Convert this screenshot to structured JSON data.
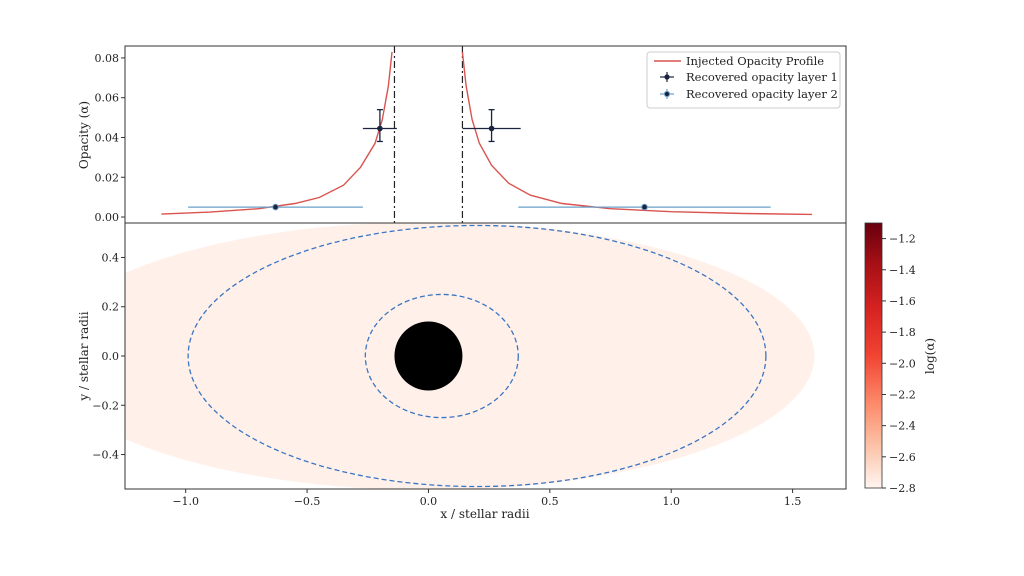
{
  "chart_data": [
    {
      "type": "line",
      "ylabel": "Opacity (α)",
      "xlim": [
        -1.25,
        1.72
      ],
      "ylim": [
        -0.003,
        0.086
      ],
      "yticks": [
        "0.00",
        "0.02",
        "0.04",
        "0.06",
        "0.08"
      ],
      "ytick_values": [
        0,
        0.02,
        0.04,
        0.06,
        0.08
      ],
      "vlines": [
        -0.14,
        0.14
      ],
      "legend": {
        "placement": "top-right",
        "entries": [
          "Injected Opacity Profile",
          "Recovered opacity layer 1",
          "Recovered opacity layer 2"
        ]
      },
      "series": [
        {
          "name": "Injected Opacity Profile",
          "color": "#d9534f",
          "left_x": [
            -1.1,
            -0.9,
            -0.7,
            -0.55,
            -0.45,
            -0.35,
            -0.28,
            -0.22,
            -0.19,
            -0.165,
            -0.15
          ],
          "left_y": [
            0.0015,
            0.0025,
            0.0042,
            0.0068,
            0.0098,
            0.016,
            0.025,
            0.037,
            0.049,
            0.066,
            0.083
          ],
          "right_x": [
            0.14,
            0.155,
            0.18,
            0.21,
            0.26,
            0.33,
            0.42,
            0.55,
            0.75,
            1.0,
            1.3,
            1.58
          ],
          "right_y": [
            0.083,
            0.066,
            0.049,
            0.037,
            0.026,
            0.017,
            0.011,
            0.0068,
            0.0042,
            0.0027,
            0.0018,
            0.0013
          ]
        },
        {
          "name": "Recovered opacity layer 1",
          "color": "#1a2440",
          "points": [
            {
              "x": -0.2,
              "y": 0.0445,
              "xerr": [
                0.07,
                0.07
              ],
              "yerr": [
                0.0065,
                0.0095
              ]
            },
            {
              "x": 0.26,
              "y": 0.0445,
              "xerr": [
                0.12,
                0.12
              ],
              "yerr": [
                0.0065,
                0.0095
              ]
            }
          ]
        },
        {
          "name": "Recovered opacity layer 2",
          "color": "#6aa0c8",
          "points": [
            {
              "x": -0.63,
              "y": 0.005,
              "xerr": [
                0.36,
                0.36
              ],
              "yerr": [
                0,
                0
              ]
            },
            {
              "x": 0.89,
              "y": 0.005,
              "xerr": [
                0.52,
                0.52
              ],
              "yerr": [
                0,
                0
              ]
            }
          ]
        }
      ]
    },
    {
      "type": "heatmap",
      "xlabel": "x / stellar radii",
      "ylabel": "y / stellar radii",
      "xlim": [
        -1.25,
        1.72
      ],
      "ylim": [
        -0.54,
        0.54
      ],
      "xticks": [
        "−1.0",
        "−0.5",
        "0.0",
        "0.5",
        "1.0",
        "1.5"
      ],
      "xtick_values": [
        -1.0,
        -0.5,
        0.0,
        0.5,
        1.0,
        1.5
      ],
      "yticks": [
        "−0.4",
        "−0.2",
        "0.0",
        "0.2",
        "0.4"
      ],
      "ytick_values": [
        -0.4,
        -0.2,
        0.0,
        0.2,
        0.4
      ],
      "colormap": "Reds",
      "colorbar": {
        "label": "log(α)",
        "range": [
          -2.8,
          -1.1
        ],
        "ticks": [
          "−1.2",
          "−1.4",
          "−1.6",
          "−1.8",
          "−2.0",
          "−2.2",
          "−2.4",
          "−2.6",
          "−2.8"
        ],
        "tick_values": [
          -1.2,
          -1.4,
          -1.6,
          -1.8,
          -2.0,
          -2.2,
          -2.4,
          -2.6,
          -2.8
        ]
      },
      "planet_disk_radius": 0.14,
      "contours": [
        {
          "x_range": [
            -0.26,
            0.37
          ],
          "y_range": [
            -0.25,
            0.25
          ],
          "style": "dashed",
          "color": "#3a75c4"
        },
        {
          "x_range": [
            -0.99,
            1.39
          ],
          "y_range": [
            -0.53,
            0.53
          ],
          "style": "dashed",
          "color": "#3a75c4"
        }
      ]
    }
  ]
}
